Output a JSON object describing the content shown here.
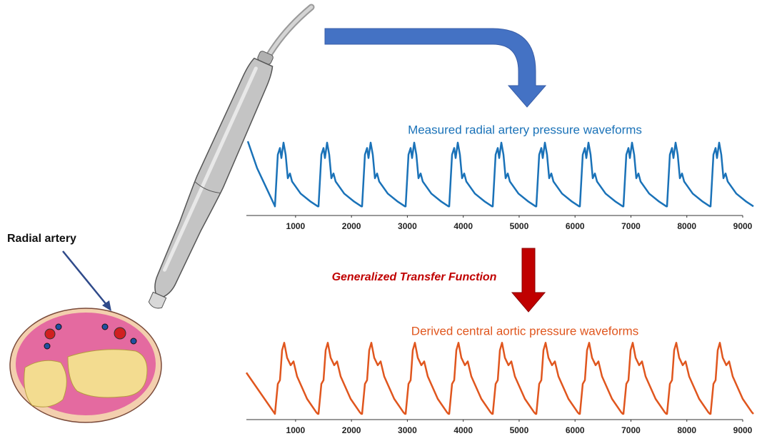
{
  "labels": {
    "artery": "Radial artery",
    "transfer": "Generalized Transfer Function"
  },
  "chart_data": [
    {
      "type": "line",
      "title": "Measured radial artery pressure waveforms",
      "color": "#1a72b8",
      "xlim": [
        120,
        9000
      ],
      "xticks": [
        1000,
        2000,
        3000,
        4000,
        5000,
        6000,
        7000,
        8000,
        9000
      ]
    },
    {
      "type": "line",
      "title": "Derived central aortic pressure waveforms",
      "color": "#e0561e",
      "xlim": [
        120,
        9000
      ],
      "xticks": [
        1000,
        2000,
        3000,
        4000,
        5000,
        6000,
        7000,
        8000,
        9000
      ]
    }
  ]
}
